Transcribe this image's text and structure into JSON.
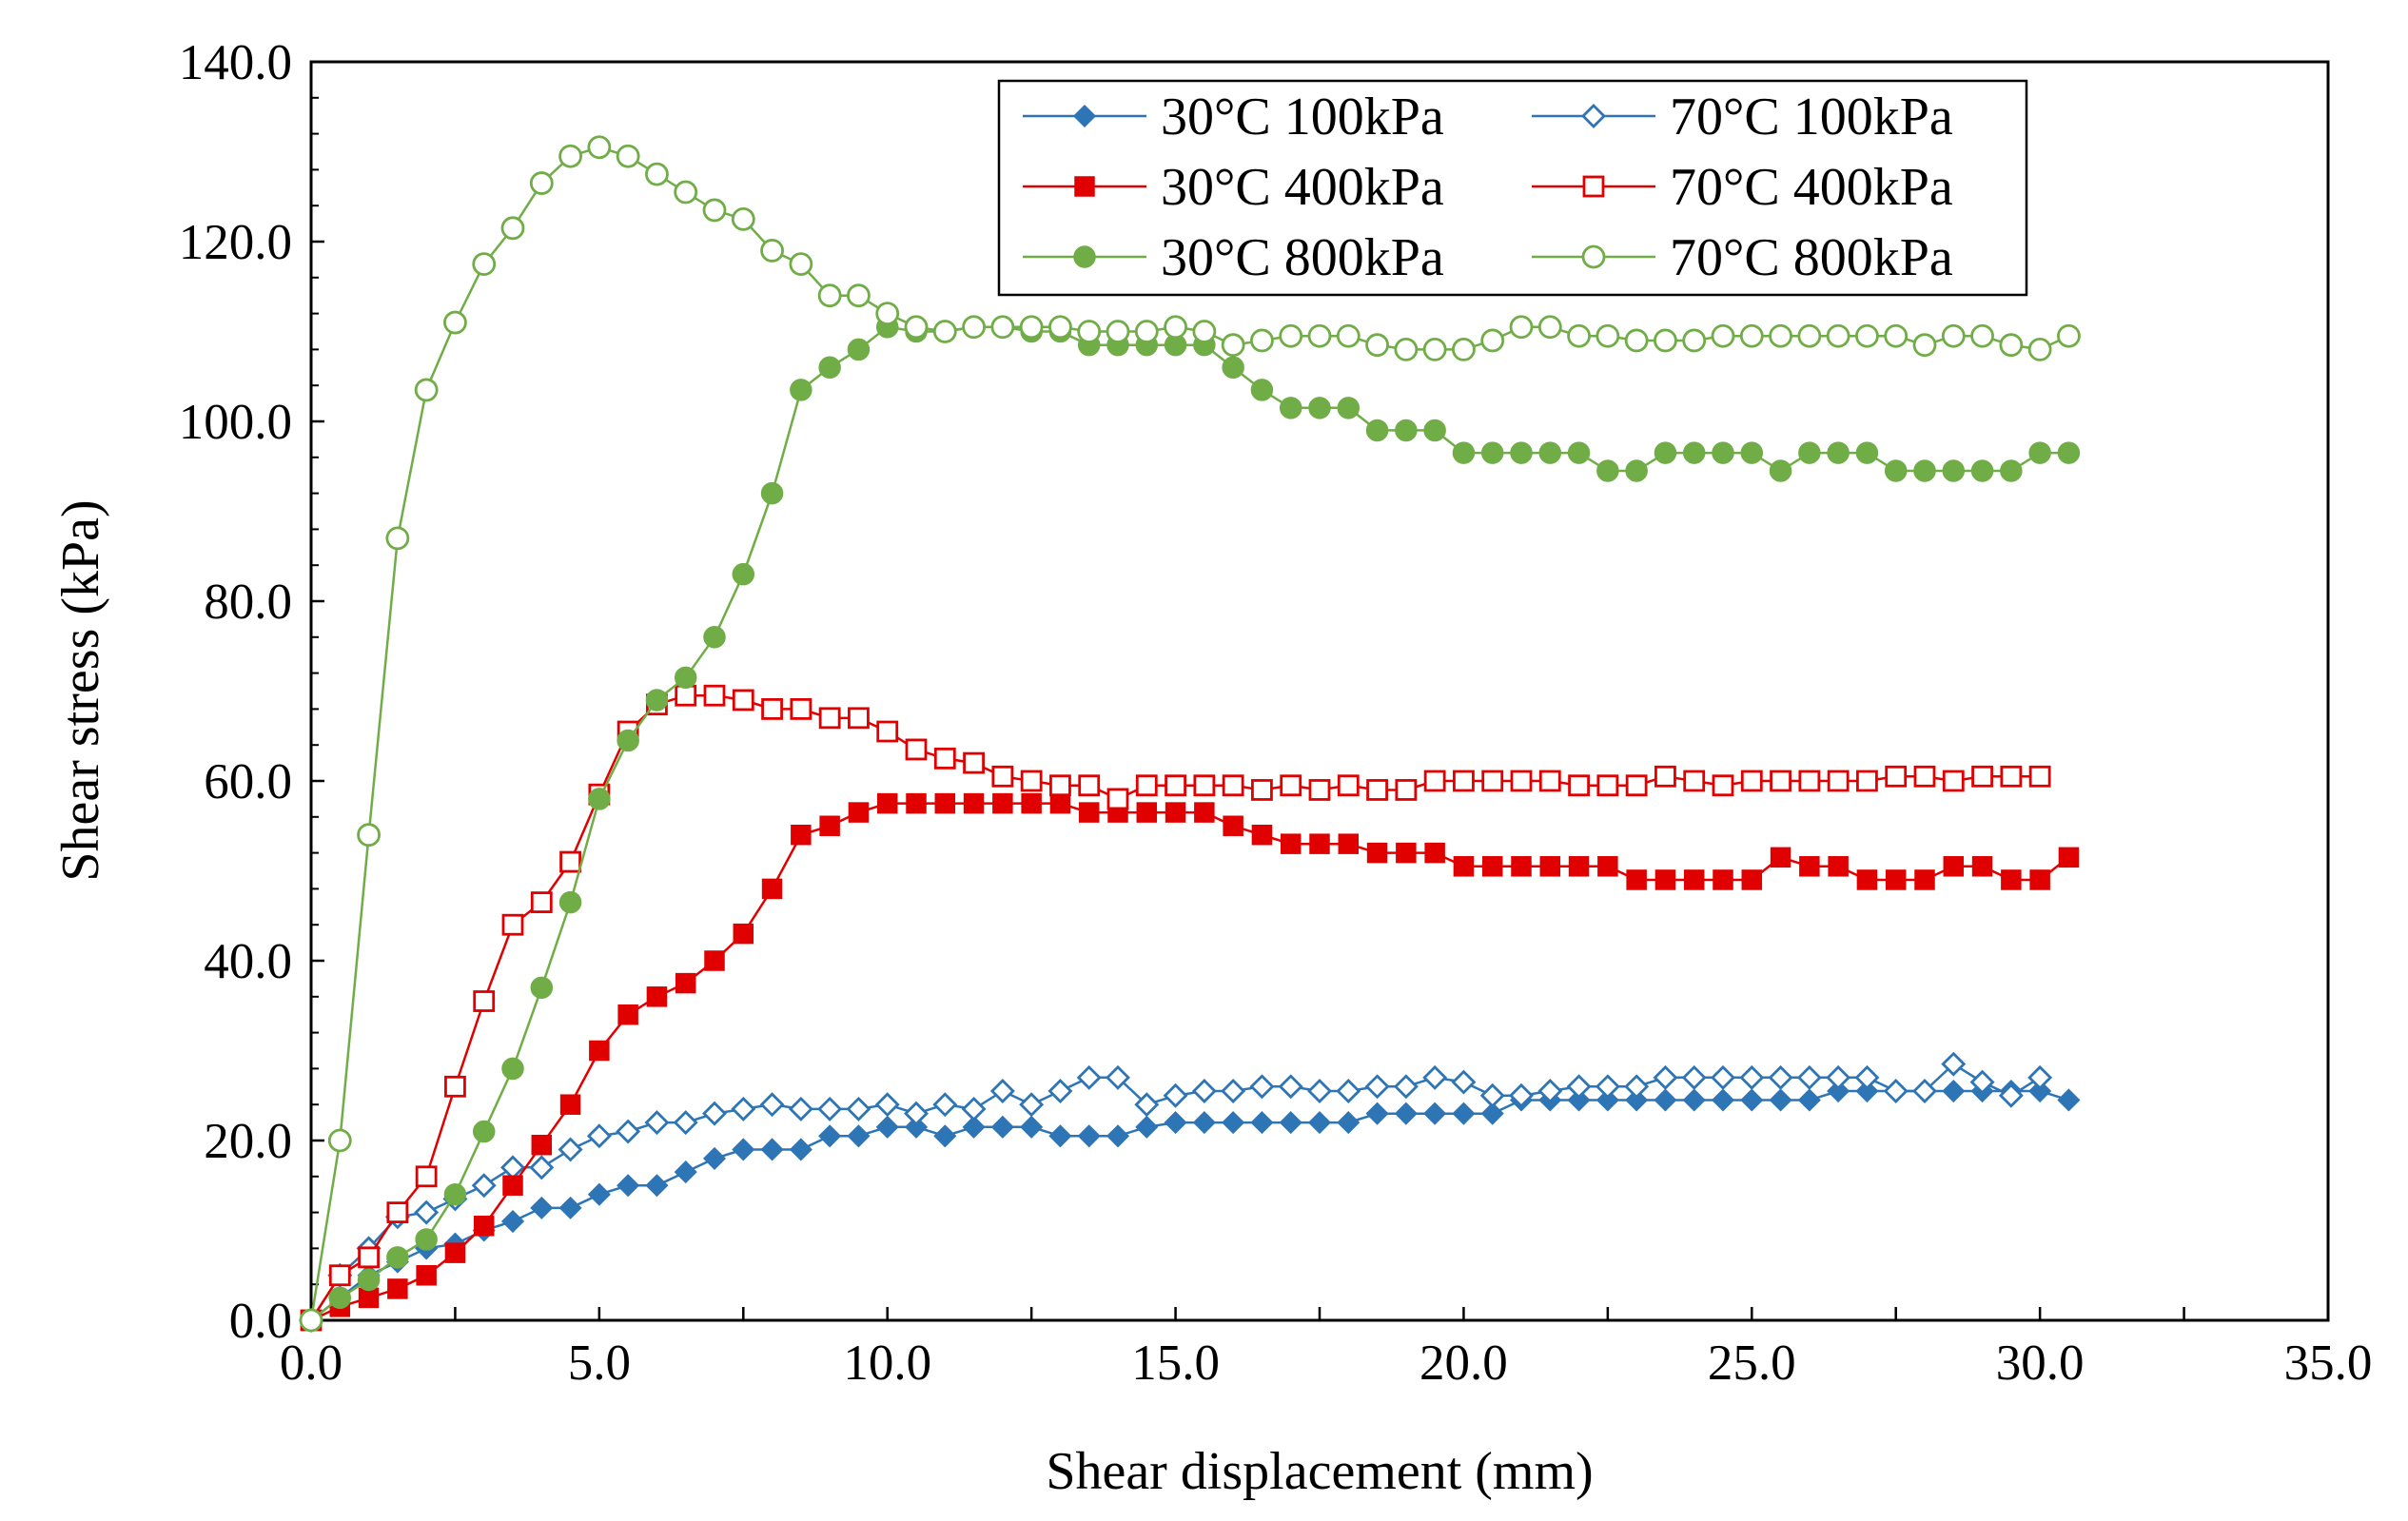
{
  "chart_data": {
    "type": "line",
    "title": "",
    "xlabel": "Shear displacement (mm)",
    "ylabel": "Shear stress (kPa)",
    "xlim": [
      0,
      35
    ],
    "ylim": [
      0,
      140
    ],
    "xticks": [
      "0.0",
      "5.0",
      "10.0",
      "15.0",
      "20.0",
      "25.0",
      "30.0",
      "35.0"
    ],
    "yticks": [
      "0.0",
      "20.0",
      "40.0",
      "60.0",
      "80.0",
      "100.0",
      "120.0",
      "140.0"
    ],
    "grid": false,
    "legend_position": "top-right",
    "series": [
      {
        "name": "30°C 100kPa",
        "color": "#2E75B6",
        "marker": "diamond-filled",
        "x": [
          0,
          0.5,
          1,
          1.5,
          2,
          2.5,
          3,
          3.5,
          4,
          4.5,
          5,
          5.5,
          6,
          6.5,
          7,
          7.5,
          8,
          8.5,
          9,
          9.5,
          10,
          10.5,
          11,
          11.5,
          12,
          12.5,
          13,
          13.5,
          14,
          14.5,
          15,
          15.5,
          16,
          16.5,
          17,
          17.5,
          18,
          18.5,
          19,
          19.5,
          20,
          20.5,
          21,
          21.5,
          22,
          22.5,
          23,
          23.5,
          24,
          24.5,
          25,
          25.5,
          26,
          26.5,
          27,
          27.5,
          28,
          28.5,
          29,
          29.5,
          30,
          30.5
        ],
        "y": [
          0,
          2.5,
          5,
          6.5,
          8,
          8.5,
          10,
          11,
          12.5,
          12.5,
          14,
          15,
          15,
          16.5,
          18,
          19,
          19,
          19,
          20.5,
          20.5,
          21.5,
          21.5,
          20.5,
          21.5,
          21.5,
          21.5,
          20.5,
          20.5,
          20.5,
          21.5,
          22,
          22,
          22,
          22,
          22,
          22,
          22,
          23,
          23,
          23,
          23,
          23,
          24.5,
          24.5,
          24.5,
          24.5,
          24.5,
          24.5,
          24.5,
          24.5,
          24.5,
          24.5,
          24.5,
          25.5,
          25.5,
          25.5,
          25.5,
          25.5,
          25.5,
          25.5,
          25.5,
          24.5
        ]
      },
      {
        "name": "70°C 100kPa",
        "color": "#2E75B6",
        "marker": "diamond-open",
        "x": [
          0,
          0.5,
          1,
          1.5,
          2,
          2.5,
          3,
          3.5,
          4,
          4.5,
          5,
          5.5,
          6,
          6.5,
          7,
          7.5,
          8,
          8.5,
          9,
          9.5,
          10,
          10.5,
          11,
          11.5,
          12,
          12.5,
          13,
          13.5,
          14,
          14.5,
          15,
          15.5,
          16,
          16.5,
          17,
          17.5,
          18,
          18.5,
          19,
          19.5,
          20,
          20.5,
          21,
          21.5,
          22,
          22.5,
          23,
          23.5,
          24,
          24.5,
          25,
          25.5,
          26,
          26.5,
          27,
          27.5,
          28,
          28.5,
          29,
          29.5,
          30
        ],
        "y": [
          0,
          5,
          8,
          11.5,
          12,
          13.5,
          15,
          17,
          17,
          19,
          20.5,
          21,
          22,
          22,
          23,
          23.5,
          24,
          23.5,
          23.5,
          23.5,
          24,
          23,
          24,
          23.5,
          25.5,
          24,
          25.5,
          27,
          27,
          24,
          25,
          25.5,
          25.5,
          26,
          26,
          25.5,
          25.5,
          26,
          26,
          27,
          26.5,
          25,
          25,
          25.5,
          26,
          26,
          26,
          27,
          27,
          27,
          27,
          27,
          27,
          27,
          27,
          25.5,
          25.5,
          28.5,
          26.5,
          25,
          27
        ]
      },
      {
        "name": "30°C 400kPa",
        "color": "#E00000",
        "marker": "square-filled",
        "x": [
          0,
          0.5,
          1,
          1.5,
          2,
          2.5,
          3,
          3.5,
          4,
          4.5,
          5,
          5.5,
          6,
          6.5,
          7,
          7.5,
          8,
          8.5,
          9,
          9.5,
          10,
          10.5,
          11,
          11.5,
          12,
          12.5,
          13,
          13.5,
          14,
          14.5,
          15,
          15.5,
          16,
          16.5,
          17,
          17.5,
          18,
          18.5,
          19,
          19.5,
          20,
          20.5,
          21,
          21.5,
          22,
          22.5,
          23,
          23.5,
          24,
          24.5,
          25,
          25.5,
          26,
          26.5,
          27,
          27.5,
          28,
          28.5,
          29,
          29.5,
          30,
          30.5
        ],
        "y": [
          0,
          1.5,
          2.5,
          3.5,
          5,
          7.5,
          10.5,
          15,
          19.5,
          24,
          30,
          34,
          36,
          37.5,
          40,
          43,
          48,
          54,
          55,
          56.5,
          57.5,
          57.5,
          57.5,
          57.5,
          57.5,
          57.5,
          57.5,
          56.5,
          56.5,
          56.5,
          56.5,
          56.5,
          55,
          54,
          53,
          53,
          53,
          52,
          52,
          52,
          50.5,
          50.5,
          50.5,
          50.5,
          50.5,
          50.5,
          49,
          49,
          49,
          49,
          49,
          51.5,
          50.5,
          50.5,
          49,
          49,
          49,
          50.5,
          50.5,
          49,
          49,
          51.5
        ]
      },
      {
        "name": "70°C 400kPa",
        "color": "#E00000",
        "marker": "square-open",
        "x": [
          0,
          0.5,
          1,
          1.5,
          2,
          2.5,
          3,
          3.5,
          4,
          4.5,
          5,
          5.5,
          6,
          6.5,
          7,
          7.5,
          8,
          8.5,
          9,
          9.5,
          10,
          10.5,
          11,
          11.5,
          12,
          12.5,
          13,
          13.5,
          14,
          14.5,
          15,
          15.5,
          16,
          16.5,
          17,
          17.5,
          18,
          18.5,
          19,
          19.5,
          20,
          20.5,
          21,
          21.5,
          22,
          22.5,
          23,
          23.5,
          24,
          24.5,
          25,
          25.5,
          26,
          26.5,
          27,
          27.5,
          28,
          28.5,
          29,
          29.5,
          30
        ],
        "y": [
          0,
          5,
          7,
          12,
          16,
          26,
          35.5,
          44,
          46.5,
          51,
          58.5,
          65.5,
          68.5,
          69.5,
          69.5,
          69,
          68,
          68,
          67,
          67,
          65.5,
          63.5,
          62.5,
          62,
          60.5,
          60,
          59.5,
          59.5,
          58,
          59.5,
          59.5,
          59.5,
          59.5,
          59,
          59.5,
          59,
          59.5,
          59,
          59,
          60,
          60,
          60,
          60,
          60,
          59.5,
          59.5,
          59.5,
          60.5,
          60,
          59.5,
          60,
          60,
          60,
          60,
          60,
          60.5,
          60.5,
          60,
          60.5,
          60.5,
          60.5
        ]
      },
      {
        "name": "30°C 800kPa",
        "color": "#70AD47",
        "marker": "circle-filled",
        "x": [
          0,
          0.5,
          1,
          1.5,
          2,
          2.5,
          3,
          3.5,
          4,
          4.5,
          5,
          5.5,
          6,
          6.5,
          7,
          7.5,
          8,
          8.5,
          9,
          9.5,
          10,
          10.5,
          11,
          11.5,
          12,
          12.5,
          13,
          13.5,
          14,
          14.5,
          15,
          15.5,
          16,
          16.5,
          17,
          17.5,
          18,
          18.5,
          19,
          19.5,
          20,
          20.5,
          21,
          21.5,
          22,
          22.5,
          23,
          23.5,
          24,
          24.5,
          25,
          25.5,
          26,
          26.5,
          27,
          27.5,
          28,
          28.5,
          29,
          29.5,
          30,
          30.5
        ],
        "y": [
          0,
          2.5,
          4.5,
          7,
          9,
          14,
          21,
          28,
          37,
          46.5,
          58,
          64.5,
          69,
          71.5,
          76,
          83,
          92,
          103.5,
          106,
          108,
          110.5,
          110,
          110,
          110.5,
          110.5,
          110,
          110,
          108.5,
          108.5,
          108.5,
          108.5,
          108.5,
          106,
          103.5,
          101.5,
          101.5,
          101.5,
          99,
          99,
          99,
          96.5,
          96.5,
          96.5,
          96.5,
          96.5,
          94.5,
          94.5,
          96.5,
          96.5,
          96.5,
          96.5,
          94.5,
          96.5,
          96.5,
          96.5,
          94.5,
          94.5,
          94.5,
          94.5,
          94.5,
          96.5,
          96.5
        ]
      },
      {
        "name": "70°C 800kPa",
        "color": "#70AD47",
        "marker": "circle-open",
        "x": [
          0,
          0.5,
          1,
          1.5,
          2,
          2.5,
          3,
          3.5,
          4,
          4.5,
          5,
          5.5,
          6,
          6.5,
          7,
          7.5,
          8,
          8.5,
          9,
          9.5,
          10,
          10.5,
          11,
          11.5,
          12,
          12.5,
          13,
          13.5,
          14,
          14.5,
          15,
          15.5,
          16,
          16.5,
          17,
          17.5,
          18,
          18.5,
          19,
          19.5,
          20,
          20.5,
          21,
          21.5,
          22,
          22.5,
          23,
          23.5,
          24,
          24.5,
          25,
          25.5,
          26,
          26.5,
          27,
          27.5,
          28,
          28.5,
          29,
          29.5,
          30,
          30.5
        ],
        "y": [
          0,
          20,
          54,
          87,
          103.5,
          111,
          117.5,
          121.5,
          126.5,
          129.5,
          130.5,
          129.5,
          127.5,
          125.5,
          123.5,
          122.5,
          119,
          117.5,
          114,
          114,
          112,
          110.5,
          110,
          110.5,
          110.5,
          110.5,
          110.5,
          110,
          110,
          110,
          110.5,
          110,
          108.5,
          109,
          109.5,
          109.5,
          109.5,
          108.5,
          108,
          108,
          108,
          109,
          110.5,
          110.5,
          109.5,
          109.5,
          109,
          109,
          109,
          109.5,
          109.5,
          109.5,
          109.5,
          109.5,
          109.5,
          109.5,
          108.5,
          109.5,
          109.5,
          108.5,
          108,
          109.5
        ]
      }
    ]
  }
}
